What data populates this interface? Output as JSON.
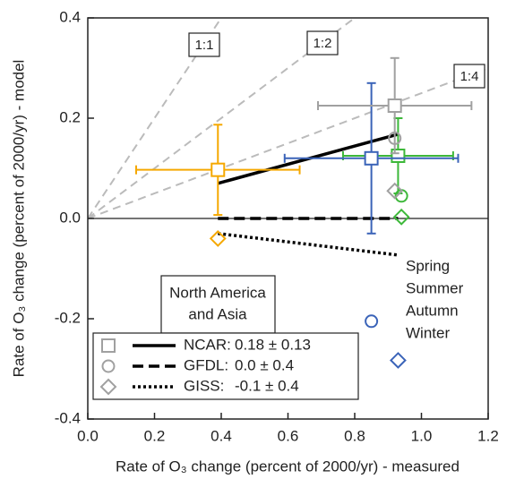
{
  "chart_data": {
    "type": "scatter",
    "xlabel": "Rate of O₃ change (percent of 2000/yr) - measured",
    "ylabel": "Rate of O₃ change (percent of 2000/yr) - model",
    "xlim": [
      0,
      1.2
    ],
    "ylim": [
      -0.4,
      0.4
    ],
    "xticks": [
      {
        "value": 0,
        "label": "0.0"
      },
      0.2,
      0.4,
      0.6,
      0.8,
      {
        "value": 1,
        "label": "1.0"
      },
      1.2
    ],
    "yticks": [
      -0.4,
      -0.2,
      {
        "value": 0,
        "label": "0.0"
      },
      0.2,
      0.4
    ],
    "zero_line": 0,
    "reference_lines": [
      {
        "label": "1:1",
        "slope": 1
      },
      {
        "label": "1:2",
        "slope": 0.5
      },
      {
        "label": "1:4",
        "slope": 0.25
      }
    ],
    "region_label": [
      "North America",
      "and Asia"
    ],
    "season_legend": [
      {
        "name": "Spring",
        "color": "#3db83a"
      },
      {
        "name": "Summer",
        "color": "#3a63b8"
      },
      {
        "name": "Autumn",
        "color": "#f5a800"
      },
      {
        "name": "Winter",
        "color": "#a0a0a0"
      }
    ],
    "model_legend": [
      {
        "label": "NCAR:",
        "fit": "0.18 ± 0.13",
        "marker": "square",
        "dash": "solid"
      },
      {
        "label": "GFDL:",
        "fit": "0.0 ± 0.4",
        "marker": "circle",
        "dash": "dashed"
      },
      {
        "label": "GISS:",
        "fit": "-0.1 ± 0.4",
        "marker": "diamond",
        "dash": "dotted"
      }
    ],
    "series": [
      {
        "marker": "square",
        "colors": [
          "#3db83a",
          "#3a63b8",
          "#f5a800",
          "#a0a0a0"
        ],
        "x": [
          0.93,
          0.85,
          0.39,
          0.92
        ],
        "values": [
          0.125,
          0.12,
          0.097,
          0.225
        ],
        "xerr": [
          0.165,
          0.26,
          0.245,
          0.23
        ],
        "yerr": [
          0.075,
          0.15,
          0.09,
          0.095
        ]
      },
      {
        "marker": "circle",
        "colors": [
          "#3db83a",
          "#3a63b8",
          "#a0a0a0"
        ],
        "x": [
          0.94,
          0.85,
          0.92
        ],
        "values": [
          0.045,
          -0.205,
          0.16
        ]
      },
      {
        "marker": "diamond",
        "colors": [
          "#3db83a",
          "#3a63b8",
          "#f5a800",
          "#a0a0a0"
        ],
        "x": [
          0.94,
          0.93,
          0.39,
          0.92
        ],
        "values": [
          0.003,
          -0.283,
          -0.04,
          0.055
        ]
      }
    ],
    "fits": [
      {
        "dash": "solid",
        "x": [
          0.39,
          0.93
        ],
        "values": [
          0.07,
          0.168
        ]
      },
      {
        "dash": "dashed",
        "x": [
          0.39,
          0.93
        ],
        "values": [
          0.0,
          0.0
        ]
      },
      {
        "dash": "dotted",
        "x": [
          0.39,
          0.93
        ],
        "values": [
          -0.03,
          -0.073
        ]
      }
    ]
  }
}
